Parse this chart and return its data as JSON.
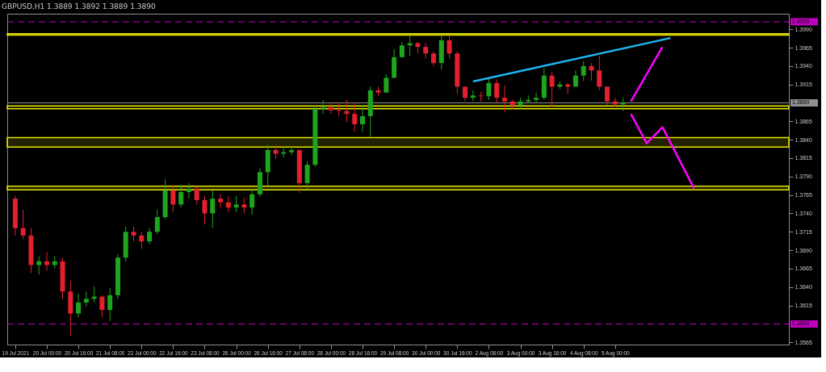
{
  "chart_data": {
    "type": "candlestick",
    "title": "GBPUSD,H1  1.3889 1.3892 1.3889 1.3890",
    "categories": [
      "19 Jul 2021",
      null,
      null,
      null,
      "20 Jul 00:00",
      null,
      null,
      null,
      "20 Jul 16:00",
      null,
      null,
      null,
      "21 Jul 08:00",
      null,
      null,
      null,
      "22 Jul 00:00",
      null,
      null,
      null,
      "22 Jul 16:00",
      null,
      null,
      null,
      "23 Jul 08:00",
      null,
      null,
      null,
      "26 Jul 00:00",
      null,
      null,
      null,
      "26 Jul 16:00",
      null,
      null,
      null,
      "27 Jul 08:00",
      null,
      null,
      null,
      "28 Jul 00:00",
      null,
      null,
      null,
      "28 Jul 16:00",
      null,
      null,
      null,
      "29 Jul 08:00",
      null,
      null,
      null,
      "30 Jul 00:00",
      null,
      null,
      null,
      "30 Jul 16:00",
      null,
      null,
      null,
      "2 Aug 08:00",
      null,
      null,
      null,
      "3 Aug 00:00",
      null,
      null,
      null,
      "3 Aug 16:00",
      null,
      null,
      null,
      "4 Aug 08:00",
      null,
      null,
      null,
      "5 Aug 00:00",
      null,
      null,
      null,
      null,
      null,
      null,
      null,
      null,
      null,
      null,
      null,
      null,
      null,
      null,
      null,
      null,
      null,
      null,
      null,
      null,
      null
    ],
    "ohlc": [
      [
        1.376,
        1.3764,
        1.371,
        1.372
      ],
      [
        1.372,
        1.3745,
        1.3705,
        1.371
      ],
      [
        1.371,
        1.372,
        1.3659,
        1.367
      ],
      [
        1.367,
        1.3682,
        1.3657,
        1.3675
      ],
      [
        1.3675,
        1.3688,
        1.3662,
        1.367
      ],
      [
        1.367,
        1.3682,
        1.3665,
        1.3675
      ],
      [
        1.3675,
        1.368,
        1.3624,
        1.3634
      ],
      [
        1.3634,
        1.3649,
        1.3574,
        1.3604
      ],
      [
        1.3604,
        1.3631,
        1.3599,
        1.3619
      ],
      [
        1.3619,
        1.3634,
        1.3614,
        1.3624
      ],
      [
        1.3624,
        1.3641,
        1.3619,
        1.3627
      ],
      [
        1.3627,
        1.3629,
        1.3599,
        1.3609
      ],
      [
        1.3609,
        1.3639,
        1.3594,
        1.3629
      ],
      [
        1.3629,
        1.3685,
        1.3624,
        1.368
      ],
      [
        1.368,
        1.3722,
        1.3675,
        1.3715
      ],
      [
        1.3715,
        1.3722,
        1.3702,
        1.371
      ],
      [
        1.371,
        1.3715,
        1.3692,
        1.3702
      ],
      [
        1.3702,
        1.372,
        1.3698,
        1.3715
      ],
      [
        1.3715,
        1.3745,
        1.3712,
        1.3735
      ],
      [
        1.3735,
        1.3786,
        1.3732,
        1.3771
      ],
      [
        1.3771,
        1.3779,
        1.3742,
        1.3752
      ],
      [
        1.3752,
        1.3779,
        1.3748,
        1.3769
      ],
      [
        1.3769,
        1.3781,
        1.376,
        1.3773
      ],
      [
        1.3773,
        1.3776,
        1.3752,
        1.3758
      ],
      [
        1.3758,
        1.3763,
        1.3725,
        1.374
      ],
      [
        1.374,
        1.3771,
        1.372,
        1.376
      ],
      [
        1.376,
        1.3766,
        1.3748,
        1.3755
      ],
      [
        1.3755,
        1.3763,
        1.3742,
        1.3748
      ],
      [
        1.3748,
        1.3764,
        1.3742,
        1.3752
      ],
      [
        1.3752,
        1.3761,
        1.374,
        1.3748
      ],
      [
        1.3748,
        1.3773,
        1.3738,
        1.3766
      ],
      [
        1.3766,
        1.3801,
        1.3763,
        1.3796
      ],
      [
        1.3796,
        1.3833,
        1.3778,
        1.3826
      ],
      [
        1.3826,
        1.3833,
        1.3814,
        1.3821
      ],
      [
        1.3821,
        1.3831,
        1.3816,
        1.3823
      ],
      [
        1.3823,
        1.3831,
        1.3819,
        1.3826
      ],
      [
        1.3826,
        1.3826,
        1.3768,
        1.3781
      ],
      [
        1.3781,
        1.3811,
        1.3773,
        1.3806
      ],
      [
        1.3806,
        1.3887,
        1.3803,
        1.3882
      ],
      [
        1.3882,
        1.3894,
        1.3875,
        1.3884
      ],
      [
        1.3884,
        1.389,
        1.3875,
        1.388
      ],
      [
        1.388,
        1.389,
        1.3872,
        1.3879
      ],
      [
        1.3879,
        1.3894,
        1.3864,
        1.3875
      ],
      [
        1.3875,
        1.389,
        1.3851,
        1.3861
      ],
      [
        1.3861,
        1.3887,
        1.3851,
        1.3872
      ],
      [
        1.3872,
        1.3912,
        1.3844,
        1.3907
      ],
      [
        1.3907,
        1.3912,
        1.39,
        1.3904
      ],
      [
        1.3904,
        1.3929,
        1.3904,
        1.3924
      ],
      [
        1.3924,
        1.3963,
        1.3924,
        1.3952
      ],
      [
        1.3952,
        1.3973,
        1.3952,
        1.3968
      ],
      [
        1.3968,
        1.3981,
        1.3954,
        1.3971
      ],
      [
        1.3971,
        1.3973,
        1.3957,
        1.3966
      ],
      [
        1.3966,
        1.3971,
        1.395,
        1.3957
      ],
      [
        1.3957,
        1.396,
        1.394,
        1.3944
      ],
      [
        1.3944,
        1.3981,
        1.3935,
        1.3975
      ],
      [
        1.3975,
        1.3981,
        1.395,
        1.3957
      ],
      [
        1.3957,
        1.396,
        1.3902,
        1.3912
      ],
      [
        1.3912,
        1.3912,
        1.3892,
        1.3897
      ],
      [
        1.3897,
        1.3907,
        1.3892,
        1.39
      ],
      [
        1.39,
        1.3905,
        1.3892,
        1.3899
      ],
      [
        1.3899,
        1.3924,
        1.3894,
        1.3917
      ],
      [
        1.3917,
        1.3922,
        1.389,
        1.3897
      ],
      [
        1.3897,
        1.3914,
        1.3877,
        1.3892
      ],
      [
        1.3892,
        1.3894,
        1.3882,
        1.3887
      ],
      [
        1.3887,
        1.3897,
        1.3882,
        1.3892
      ],
      [
        1.3892,
        1.39,
        1.389,
        1.3894
      ],
      [
        1.3894,
        1.3904,
        1.389,
        1.3897
      ],
      [
        1.3897,
        1.3937,
        1.3894,
        1.3927
      ],
      [
        1.3927,
        1.3932,
        1.3885,
        1.3912
      ],
      [
        1.3912,
        1.3919,
        1.3909,
        1.3915
      ],
      [
        1.3915,
        1.3917,
        1.3902,
        1.3912
      ],
      [
        1.3912,
        1.3934,
        1.3912,
        1.3927
      ],
      [
        1.3927,
        1.3947,
        1.392,
        1.394
      ],
      [
        1.394,
        1.3944,
        1.392,
        1.3934
      ],
      [
        1.3934,
        1.3954,
        1.3907,
        1.3912
      ],
      [
        1.3912,
        1.3912,
        1.3887,
        1.3892
      ],
      [
        1.3892,
        1.3897,
        1.3885,
        1.3888
      ],
      [
        1.3888,
        1.3897,
        1.3879,
        1.389
      ],
      null,
      null,
      null,
      null,
      null,
      null,
      null,
      null,
      null,
      null,
      null,
      null,
      null,
      null,
      null,
      null,
      null,
      null,
      null,
      null
    ],
    "colors": [
      "#e5202e",
      "#e5202e",
      "#e5202e",
      "#1ea51e",
      "#e5202e",
      "#1ea51e",
      "#e5202e",
      "#e5202e",
      "#1ea51e",
      "#1ea51e",
      "#1ea51e",
      "#e5202e",
      "#1ea51e",
      "#1ea51e",
      "#1ea51e",
      "#e5202e",
      "#e5202e",
      "#1ea51e",
      "#1ea51e",
      "#1ea51e",
      "#e5202e",
      "#1ea51e",
      "#1ea51e",
      "#e5202e",
      "#e5202e",
      "#1ea51e",
      "#e5202e",
      "#e5202e",
      "#1ea51e",
      "#e5202e",
      "#1ea51e",
      "#1ea51e",
      "#1ea51e",
      "#e5202e",
      "#1ea51e",
      "#1ea51e",
      "#e5202e",
      "#1ea51e",
      "#1ea51e",
      "#1ea51e",
      "#e5202e",
      "#e5202e",
      "#e5202e",
      "#e5202e",
      "#1ea51e",
      "#1ea51e",
      "#e5202e",
      "#1ea51e",
      "#1ea51e",
      "#1ea51e",
      "#1ea51e",
      "#e5202e",
      "#e5202e",
      "#e5202e",
      "#1ea51e",
      "#e5202e",
      "#e5202e",
      "#e5202e",
      "#1ea51e",
      "#e5202e",
      "#1ea51e",
      "#e5202e",
      "#e5202e",
      "#e5202e",
      "#1ea51e",
      "#1ea51e",
      "#1ea51e",
      "#1ea51e",
      "#e5202e",
      "#1ea51e",
      "#e5202e",
      "#1ea51e",
      "#1ea51e",
      "#e5202e",
      "#e5202e",
      "#e5202e",
      "#e5202e",
      "#1ea51e",
      null,
      null,
      null,
      null,
      null,
      null,
      null,
      null,
      null,
      null,
      null,
      null,
      null,
      null,
      null,
      null,
      null,
      null,
      null,
      null
    ],
    "series": [
      {
        "type": "line",
        "color": "#1eb4f0",
        "values": [
          null,
          null,
          null,
          null,
          null,
          null,
          null,
          null,
          null,
          null,
          null,
          null,
          null,
          null,
          null,
          null,
          null,
          null,
          null,
          null,
          null,
          null,
          null,
          null,
          null,
          null,
          null,
          null,
          null,
          null,
          null,
          null,
          null,
          null,
          null,
          null,
          null,
          null,
          null,
          null,
          null,
          null,
          null,
          null,
          null,
          null,
          null,
          null,
          null,
          null,
          null,
          null,
          null,
          null,
          null,
          null,
          null,
          null,
          1.3919,
          null,
          null,
          null,
          null,
          null,
          null,
          null,
          null,
          null,
          null,
          null,
          null,
          null,
          null,
          null,
          null,
          null,
          null,
          null,
          null,
          null,
          null,
          null,
          null,
          1.3978,
          null,
          null,
          null,
          null,
          null,
          null,
          null,
          null,
          null,
          null,
          null,
          null,
          null,
          null
        ]
      },
      {
        "type": "line",
        "color": "#ff00ff",
        "values": [
          null,
          null,
          null,
          null,
          null,
          null,
          null,
          null,
          null,
          null,
          null,
          null,
          null,
          null,
          null,
          null,
          null,
          null,
          null,
          null,
          null,
          null,
          null,
          null,
          null,
          null,
          null,
          null,
          null,
          null,
          null,
          null,
          null,
          null,
          null,
          null,
          null,
          null,
          null,
          null,
          null,
          null,
          null,
          null,
          null,
          null,
          null,
          null,
          null,
          null,
          null,
          null,
          null,
          null,
          null,
          null,
          null,
          null,
          null,
          null,
          null,
          null,
          null,
          null,
          null,
          null,
          null,
          null,
          null,
          null,
          null,
          null,
          null,
          null,
          null,
          null,
          null,
          null,
          1.3892,
          null,
          null,
          null,
          1.3966,
          null,
          null,
          null,
          null,
          null,
          null,
          null,
          null,
          null,
          null,
          null,
          null,
          null,
          null,
          null
        ]
      },
      {
        "type": "line",
        "color": "#ff00ff",
        "values": [
          null,
          null,
          null,
          null,
          null,
          null,
          null,
          null,
          null,
          null,
          null,
          null,
          null,
          null,
          null,
          null,
          null,
          null,
          null,
          null,
          null,
          null,
          null,
          null,
          null,
          null,
          null,
          null,
          null,
          null,
          null,
          null,
          null,
          null,
          null,
          null,
          null,
          null,
          null,
          null,
          null,
          null,
          null,
          null,
          null,
          null,
          null,
          null,
          null,
          null,
          null,
          null,
          null,
          null,
          null,
          null,
          null,
          null,
          null,
          null,
          null,
          null,
          null,
          null,
          null,
          null,
          null,
          null,
          null,
          null,
          null,
          null,
          null,
          null,
          null,
          null,
          null,
          null,
          1.3875,
          null,
          1.3835,
          null,
          1.3857,
          null,
          null,
          null,
          1.3774,
          null,
          null,
          null,
          null,
          null,
          null,
          null,
          null,
          null,
          null,
          null
        ]
      }
    ],
    "ylim": [
      1.3562,
      1.4011
    ],
    "yticks": [
      {
        "value": 1.399,
        "label": "1.3990"
      },
      1.3965,
      {
        "value": 1.394,
        "label": "1.3940"
      },
      1.3915,
      1.3865,
      {
        "value": 1.384,
        "label": "1.3840"
      },
      1.3815,
      {
        "value": 1.379,
        "label": "1.3790"
      },
      1.3765,
      {
        "value": 1.374,
        "label": "1.3740"
      },
      1.3715,
      {
        "value": 1.369,
        "label": "1.3690"
      },
      1.3665,
      {
        "value": 1.364,
        "label": "1.3640"
      },
      1.3615,
      1.3565
    ],
    "bands": [
      {
        "axis": "y",
        "from": 1.3982,
        "to": 1.3984,
        "color": "#e6e600"
      },
      {
        "axis": "y",
        "from": 1.383,
        "to": 1.3843,
        "color": "#e6e600"
      },
      {
        "axis": "y",
        "from": 1.3772,
        "to": 1.3777,
        "color": "#e6e600"
      },
      {
        "axis": "y",
        "from": 1.3882,
        "to": 1.3886,
        "color": "#e6e600"
      }
    ],
    "ref_lines": [
      {
        "axis": "y",
        "value": 1.4,
        "label": "1.4000",
        "color": "#c000c0",
        "line_style": "dashed"
      },
      {
        "axis": "y",
        "value": 1.359,
        "label": "1.3590",
        "color": "#c000c0",
        "line_style": "dashed"
      },
      {
        "axis": "y",
        "value": 1.389,
        "label": "1.3890",
        "color": "#909090",
        "line_style": "solid"
      }
    ]
  }
}
